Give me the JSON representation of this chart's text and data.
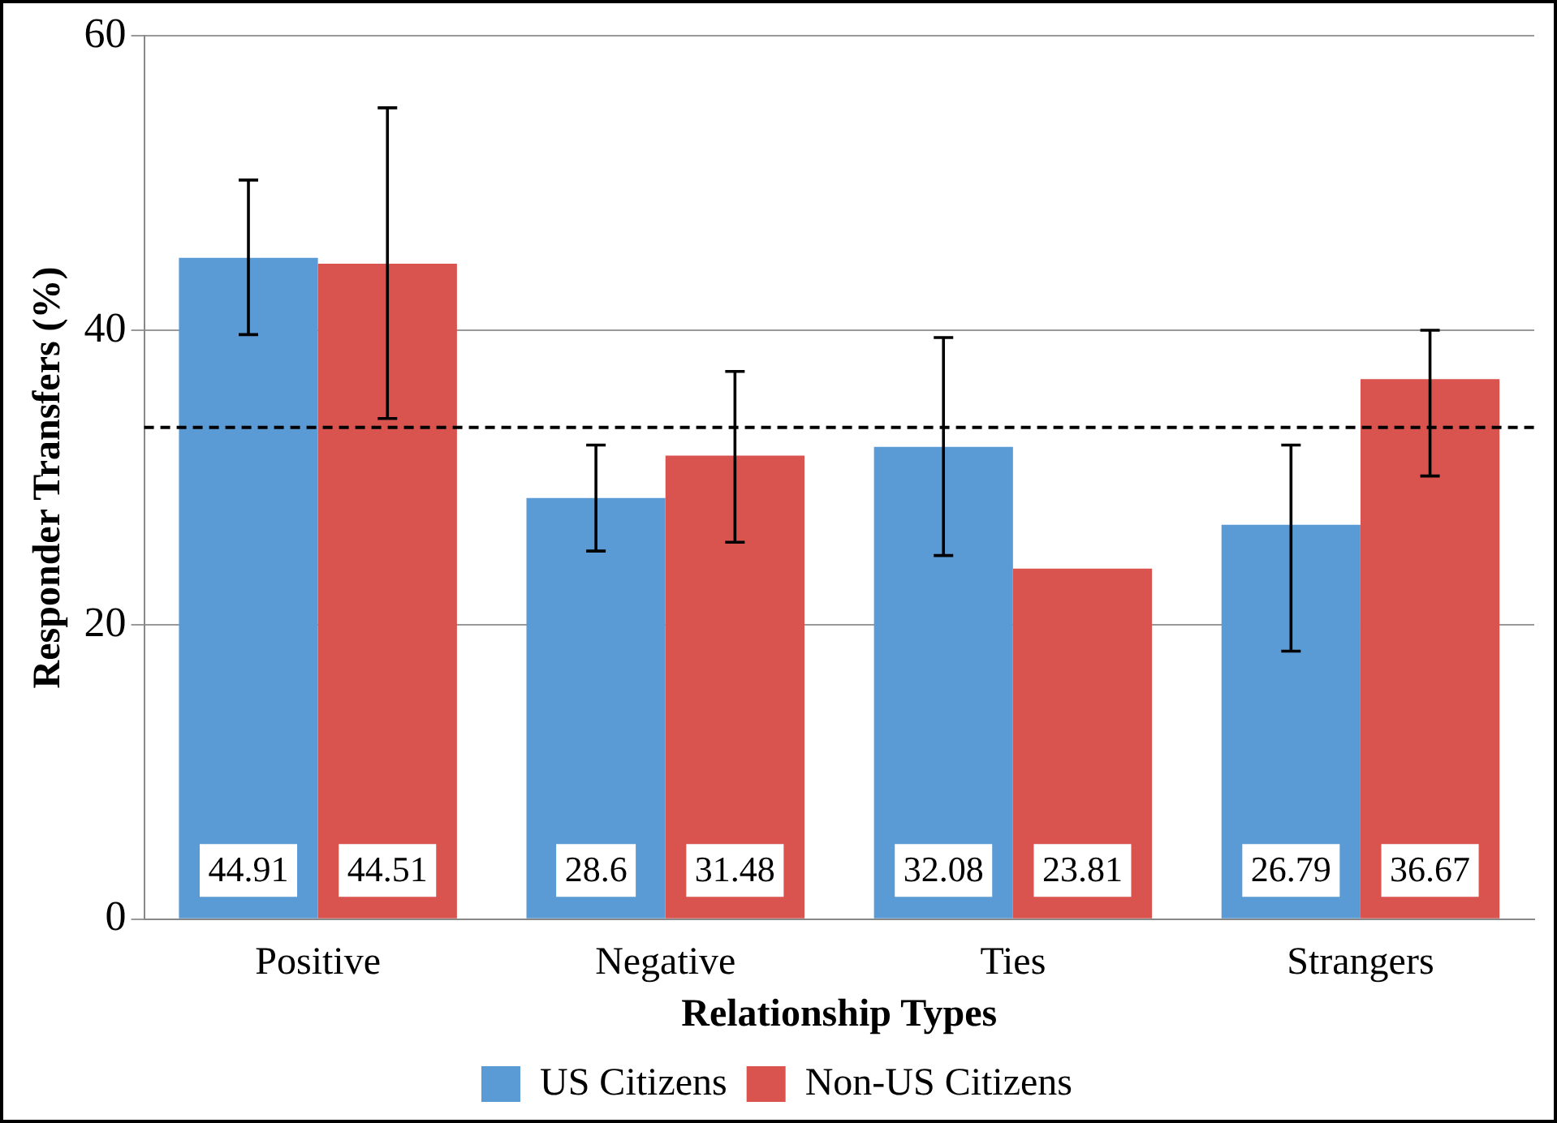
{
  "chart_data": {
    "type": "bar",
    "xlabel": "Relationship Types",
    "ylabel": "Responder Transfers (%)",
    "categories": [
      "Positive",
      "Negative",
      "Ties",
      "Strangers"
    ],
    "series": [
      {
        "name": "US Citizens",
        "color": "#5b9bd5",
        "values": [
          44.91,
          28.6,
          32.08,
          26.79
        ],
        "errors": [
          [
            39.7,
            50.2
          ],
          [
            25.0,
            32.2
          ],
          [
            24.7,
            39.5
          ],
          [
            18.2,
            32.2
          ]
        ]
      },
      {
        "name": "Non-US Citizens",
        "color": "#d9534f",
        "values": [
          44.51,
          31.48,
          23.81,
          36.67
        ],
        "errors": [
          [
            34.0,
            55.1
          ],
          [
            25.6,
            37.2
          ],
          null,
          [
            30.1,
            40.0
          ]
        ]
      }
    ],
    "ylim": [
      0,
      60
    ],
    "yticks": [
      0,
      20,
      40,
      60
    ],
    "grid": "y",
    "legend": "bottom",
    "data_labels": true,
    "ref_lines": [
      {
        "axis": "y",
        "value": 33.4,
        "line_style": "dashed",
        "color": "#000000"
      }
    ]
  }
}
